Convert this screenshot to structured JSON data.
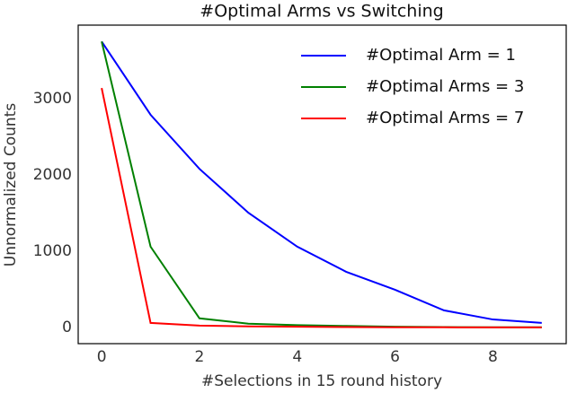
{
  "chart_data": {
    "type": "line",
    "title": "#Optimal Arms vs Switching",
    "x_label": "#Selections in 15 round history",
    "y_label": "Unnormalized Counts",
    "x": [
      0,
      1,
      2,
      3,
      4,
      5,
      6,
      7,
      8,
      9
    ],
    "series": [
      {
        "name": "#Optimal Arm = 1",
        "color": "#0000ff",
        "values": [
          3750,
          2790,
          2080,
          1505,
          1060,
          730,
          495,
          225,
          105,
          60
        ]
      },
      {
        "name": "#Optimal Arms = 3",
        "color": "#008000",
        "values": [
          3750,
          1060,
          120,
          50,
          30,
          20,
          10,
          5,
          3,
          2
        ]
      },
      {
        "name": "#Optimal Arms = 7",
        "color": "#ff0000",
        "values": [
          3140,
          60,
          25,
          15,
          10,
          5,
          3,
          2,
          1,
          1
        ]
      }
    ],
    "xlim": [
      -0.48,
      9.5
    ],
    "ylim": [
      -212,
      3965
    ],
    "xticks": [
      0,
      2,
      4,
      6,
      8
    ],
    "yticks": [
      0,
      1000,
      2000,
      3000
    ],
    "grid": false,
    "legend": "upper right"
  }
}
